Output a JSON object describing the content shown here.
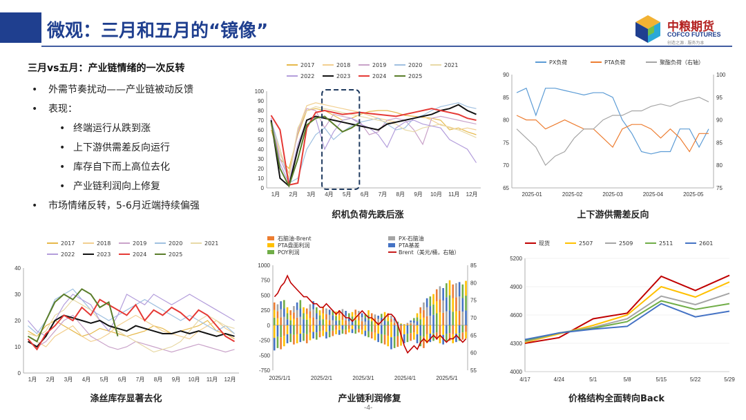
{
  "header": {
    "title": "微观：三月和五月的“镜像”"
  },
  "logo": {
    "cn": "中粮期货",
    "en": "COFCO FUTURES",
    "sub": "创造之源 · 服务为本"
  },
  "bullets": {
    "head": "三月vs五月：产业链情绪的一次反转",
    "items": [
      {
        "level": 1,
        "text": "外需节奏扰动——产业链被动反馈"
      },
      {
        "level": 1,
        "text": "表现："
      },
      {
        "level": 2,
        "text": "终端运行从跌到涨"
      },
      {
        "level": 2,
        "text": "上下游供需差反向运行"
      },
      {
        "level": 2,
        "text": "库存自下而上高位去化"
      },
      {
        "level": 2,
        "text": "产业链利润向上修复"
      },
      {
        "level": 1,
        "text": "市场情绪反转，5-6月近端持续偏强"
      }
    ]
  },
  "page_number": "-4-",
  "colors": {
    "y2017": "#e6b84a",
    "y2018": "#f2cf8f",
    "y2019": "#c9a2c9",
    "y2020": "#9fc0e0",
    "y2021": "#e8d9a6",
    "y2022": "#b39ddb",
    "y2023": "#111111",
    "y2024": "#e53935",
    "y2025": "#5a7d2a"
  },
  "chart_data": [
    {
      "id": "loom",
      "type": "line",
      "title": "织机负荷先跌后涨",
      "x_ticks": [
        "1月",
        "2月",
        "3月",
        "4月",
        "5月",
        "6月",
        "7月",
        "8月",
        "9月",
        "10月",
        "11月",
        "12月"
      ],
      "ylim": [
        0,
        100
      ],
      "y_ticks": [
        0,
        10,
        20,
        30,
        40,
        50,
        60,
        70,
        80,
        90,
        100
      ],
      "highlight": {
        "from": 3.6,
        "to": 5.7,
        "style": "dashed-box"
      },
      "series": [
        {
          "name": "2017",
          "color": "#e6b84a",
          "values": [
            60,
            30,
            20,
            55,
            80,
            82,
            80,
            75,
            70,
            72,
            76,
            79,
            80,
            80,
            78,
            75,
            74,
            73,
            72,
            70,
            60,
            62,
            58,
            55
          ]
        },
        {
          "name": "2018",
          "color": "#f2cf8f",
          "values": [
            70,
            35,
            15,
            60,
            85,
            88,
            86,
            84,
            82,
            80,
            78,
            75,
            72,
            70,
            68,
            70,
            72,
            74,
            70,
            65,
            63,
            60,
            62,
            60
          ]
        },
        {
          "name": "2019",
          "color": "#c9a2c9",
          "values": [
            72,
            30,
            10,
            58,
            82,
            80,
            62,
            76,
            74,
            72,
            68,
            55,
            58,
            70,
            72,
            70,
            60,
            45,
            72,
            74,
            72,
            70,
            68,
            66
          ]
        },
        {
          "name": "2020",
          "color": "#9fc0e0",
          "values": [
            70,
            40,
            5,
            10,
            40,
            55,
            62,
            50,
            58,
            64,
            68,
            70,
            72,
            66,
            60,
            62,
            72,
            75,
            80,
            84,
            86,
            88,
            84,
            82
          ]
        },
        {
          "name": "2021",
          "color": "#e8d9a6",
          "values": [
            65,
            40,
            10,
            62,
            80,
            84,
            82,
            80,
            78,
            76,
            74,
            72,
            70,
            68,
            66,
            60,
            58,
            62,
            64,
            66,
            62,
            60,
            56,
            52
          ]
        },
        {
          "name": "2022",
          "color": "#b39ddb",
          "values": [
            72,
            25,
            5,
            45,
            70,
            72,
            40,
            58,
            70,
            72,
            66,
            62,
            55,
            42,
            62,
            68,
            70,
            66,
            64,
            62,
            50,
            45,
            40,
            26
          ]
        },
        {
          "name": "2023",
          "color": "#111111",
          "values": [
            70,
            10,
            2,
            40,
            70,
            74,
            72,
            70,
            68,
            66,
            64,
            62,
            60,
            66,
            68,
            70,
            72,
            74,
            76,
            80,
            82,
            86,
            80,
            76
          ]
        },
        {
          "name": "2024",
          "color": "#e53935",
          "values": [
            75,
            60,
            3,
            5,
            62,
            78,
            80,
            78,
            76,
            77,
            78,
            77,
            76,
            75,
            74,
            76,
            78,
            80,
            82,
            80,
            78,
            76,
            72,
            70
          ]
        },
        {
          "name": "2025",
          "color": "#5a7d2a",
          "values": [
            68,
            20,
            2,
            30,
            65,
            72,
            74,
            66,
            58,
            62,
            68,
            null,
            null,
            null,
            null,
            null,
            null,
            null,
            null,
            null,
            null,
            null,
            null,
            null
          ]
        }
      ]
    },
    {
      "id": "supply",
      "type": "line",
      "title": "上下游供需差反向",
      "x_ticks": [
        "2025-01",
        "2025-02",
        "2025-03",
        "2025-04",
        "2025-05"
      ],
      "ylim": [
        65,
        90
      ],
      "y_ticks": [
        65,
        70,
        75,
        80,
        85,
        90
      ],
      "ylim_right": [
        75,
        100
      ],
      "y_ticks_right": [
        75,
        80,
        85,
        90,
        95,
        100
      ],
      "series": [
        {
          "name": "PX负荷",
          "color": "#5b9bd5",
          "axis": "left",
          "values": [
            86,
            87,
            81,
            87,
            87,
            86.5,
            86,
            85.5,
            86,
            86,
            85,
            80,
            77,
            73,
            72.5,
            73,
            73,
            78,
            78,
            74,
            78
          ]
        },
        {
          "name": "PTA负荷",
          "color": "#ed7d31",
          "axis": "left",
          "values": [
            81,
            80,
            80,
            78,
            79,
            80,
            79,
            78,
            78,
            76,
            74,
            78,
            79,
            79,
            78,
            76,
            78,
            76,
            73,
            77,
            77
          ]
        },
        {
          "name": "聚酯负荷（右轴）",
          "color": "#a5a5a5",
          "axis": "right",
          "values": [
            88,
            86,
            84,
            80,
            82,
            83,
            86,
            88,
            88,
            90,
            91,
            91,
            92,
            92,
            93,
            93.5,
            93,
            94,
            94.5,
            95,
            94
          ]
        }
      ]
    },
    {
      "id": "inventory",
      "type": "line",
      "title": "涤丝库存显著去化",
      "x_ticks": [
        "1月",
        "2月",
        "3月",
        "4月",
        "5月",
        "6月",
        "7月",
        "8月",
        "9月",
        "10月",
        "11月",
        "12月"
      ],
      "ylim": [
        0,
        40
      ],
      "y_ticks": [
        0,
        10,
        20,
        30,
        40
      ],
      "series": [
        {
          "name": "2017",
          "color": "#e6b84a",
          "values": [
            16,
            14,
            18,
            20,
            18,
            16,
            14,
            15,
            17,
            16,
            15,
            14,
            15,
            16,
            18,
            17,
            15,
            16,
            17,
            18,
            20,
            16,
            15,
            13
          ]
        },
        {
          "name": "2018",
          "color": "#f2cf8f",
          "values": [
            14,
            12,
            10,
            14,
            16,
            18,
            14,
            12,
            13,
            15,
            18,
            20,
            22,
            20,
            18,
            16,
            15,
            14,
            13,
            16,
            18,
            20,
            17,
            15
          ]
        },
        {
          "name": "2019",
          "color": "#c9a2c9",
          "values": [
            12,
            10,
            12,
            16,
            20,
            22,
            18,
            14,
            12,
            10,
            9,
            10,
            12,
            11,
            10,
            9,
            8,
            9,
            10,
            11,
            10,
            9,
            8,
            9
          ]
        },
        {
          "name": "2020",
          "color": "#9fc0e0",
          "values": [
            18,
            15,
            20,
            28,
            30,
            32,
            28,
            24,
            22,
            20,
            22,
            24,
            26,
            28,
            26,
            24,
            22,
            20,
            22,
            20,
            18,
            16,
            18,
            15
          ]
        },
        {
          "name": "2021",
          "color": "#e8d9a6",
          "values": [
            15,
            14,
            16,
            22,
            24,
            28,
            26,
            24,
            20,
            18,
            16,
            14,
            12,
            10,
            8,
            9,
            10,
            12,
            16,
            20,
            22,
            20,
            18,
            17
          ]
        },
        {
          "name": "2022",
          "color": "#b39ddb",
          "values": [
            20,
            16,
            14,
            20,
            26,
            30,
            28,
            26,
            20,
            16,
            22,
            30,
            28,
            26,
            30,
            28,
            26,
            28,
            30,
            28,
            26,
            24,
            22,
            20
          ]
        },
        {
          "name": "2023",
          "color": "#111111",
          "values": [
            12,
            10,
            14,
            20,
            22,
            21,
            20,
            19,
            20,
            18,
            17,
            16,
            18,
            17,
            16,
            15,
            15,
            16,
            15,
            16,
            15,
            14,
            15,
            14
          ]
        },
        {
          "name": "2024",
          "color": "#e53935",
          "values": [
            13,
            9,
            15,
            18,
            22,
            20,
            25,
            22,
            28,
            26,
            24,
            22,
            26,
            20,
            24,
            22,
            25,
            23,
            20,
            24,
            22,
            18,
            14,
            12
          ]
        },
        {
          "name": "2025",
          "color": "#5a7d2a",
          "values": [
            14,
            12,
            20,
            27,
            30,
            28,
            32,
            30,
            25,
            27,
            14,
            null,
            null,
            null,
            null,
            null,
            null,
            null,
            null,
            null,
            null,
            null,
            null,
            null
          ]
        }
      ]
    },
    {
      "id": "profit",
      "type": "bar+line",
      "title": "产业链利润修复",
      "x_ticks": [
        "2025/1/1",
        "2025/2/1",
        "2025/3/1",
        "2025/4/1",
        "2025/5/1"
      ],
      "ylim": [
        -750,
        1000
      ],
      "y_ticks": [
        -750,
        -500,
        -250,
        0,
        250,
        500,
        750,
        1000
      ],
      "ylim_right": [
        55,
        85
      ],
      "y_ticks_right": [
        55,
        60,
        65,
        70,
        75,
        80,
        85
      ],
      "legend": [
        {
          "name": "石脑油-Brent",
          "color": "#ed7d31",
          "kind": "bar"
        },
        {
          "name": "PX-石脑油",
          "color": "#a5a5a5",
          "kind": "bar"
        },
        {
          "name": "PTA盘面利润",
          "color": "#ffc000",
          "kind": "bar"
        },
        {
          "name": "PTA基差",
          "color": "#4472c4",
          "kind": "bar"
        },
        {
          "name": "POY利润",
          "color": "#70ad47",
          "kind": "bar"
        },
        {
          "name": "Brent（美元/桶，右轴）",
          "color": "#c00000",
          "kind": "line"
        }
      ],
      "brent": [
        76,
        77,
        79,
        80,
        82,
        80,
        79,
        78,
        77,
        76,
        76,
        75,
        74,
        74,
        73,
        73,
        74,
        73,
        72,
        71,
        72,
        71,
        70,
        70,
        69,
        70,
        71,
        72,
        71,
        70,
        70,
        69,
        68,
        69,
        70,
        71,
        71,
        70,
        68,
        65,
        62,
        60,
        61,
        62,
        61,
        63,
        64,
        63,
        64,
        65,
        64,
        65,
        64,
        63,
        64,
        64,
        65,
        64,
        63,
        64
      ],
      "stack_top": [
        380,
        350,
        400,
        420,
        300,
        250,
        320,
        380,
        420,
        300,
        280,
        350,
        400,
        300,
        250,
        300,
        280,
        260,
        250,
        230,
        250,
        270,
        240,
        200,
        220,
        260,
        240,
        200,
        180,
        250,
        200,
        180,
        160,
        190,
        220,
        200,
        160,
        120,
        60,
        30,
        20,
        40,
        80,
        120,
        200,
        300,
        380,
        450,
        480,
        520,
        600,
        650,
        620,
        700,
        750,
        680,
        700,
        720,
        680,
        740
      ],
      "stack_bottom": [
        -420,
        -380,
        -400,
        -350,
        -300,
        -280,
        -320,
        -300,
        -280,
        -260,
        -300,
        -250,
        -220,
        -240,
        -200,
        -180,
        -220,
        -200,
        -180,
        -150,
        -160,
        -140,
        -150,
        -120,
        -130,
        -140,
        -120,
        -150,
        -180,
        -200,
        -220,
        -250,
        -280,
        -300,
        -320,
        -350,
        -400,
        -380,
        -360,
        -340,
        -300,
        -280,
        -260,
        -240,
        -300,
        -350,
        -380,
        -300,
        -280,
        -260,
        -240,
        -300,
        -320,
        -280,
        -260,
        -300,
        -280,
        -260,
        -240,
        -220
      ]
    },
    {
      "id": "curve",
      "type": "line",
      "title": "价格结构全面转向Back",
      "x_ticks": [
        "4/17",
        "4/24",
        "5/1",
        "5/8",
        "5/15",
        "5/22",
        "5/29"
      ],
      "ylim": [
        4000,
        5200
      ],
      "y_ticks": [
        4000,
        4300,
        4600,
        4900,
        5200
      ],
      "series": [
        {
          "name": "现货",
          "color": "#c00000",
          "values": [
            4300,
            4360,
            4560,
            4620,
            5010,
            4860,
            5020
          ]
        },
        {
          "name": "2507",
          "color": "#ffc000",
          "values": [
            4310,
            4400,
            4490,
            4600,
            4900,
            4790,
            4950
          ]
        },
        {
          "name": "2509",
          "color": "#a5a5a5",
          "values": [
            4320,
            4410,
            4470,
            4560,
            4800,
            4710,
            4830
          ]
        },
        {
          "name": "2511",
          "color": "#70ad47",
          "values": [
            4330,
            4410,
            4460,
            4530,
            4750,
            4660,
            4720
          ]
        },
        {
          "name": "2601",
          "color": "#4472c4",
          "values": [
            4340,
            4410,
            4450,
            4480,
            4720,
            4580,
            4640
          ]
        }
      ]
    }
  ]
}
